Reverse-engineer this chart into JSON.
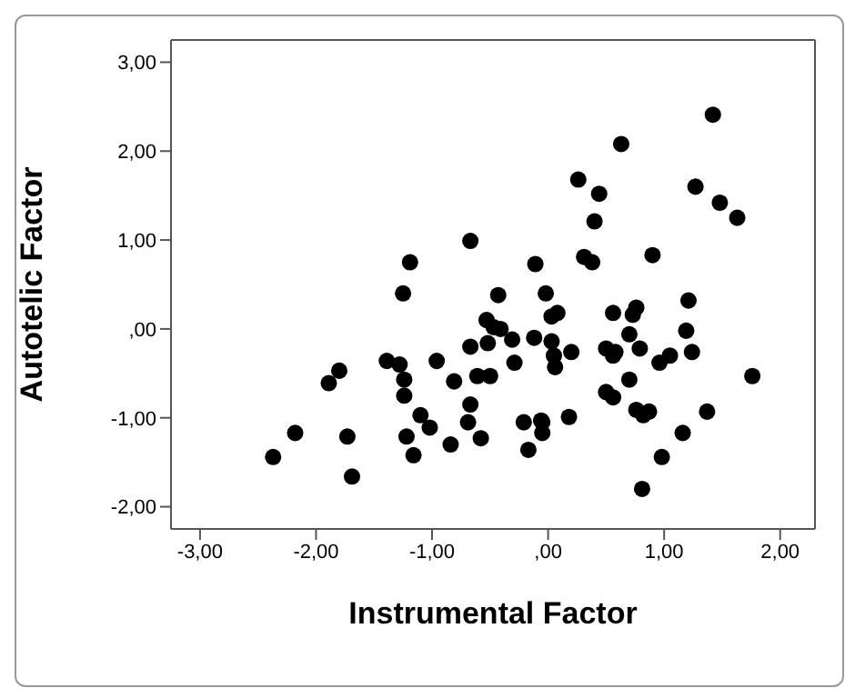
{
  "chart_data": {
    "type": "scatter",
    "xlabel": "Instrumental Factor",
    "ylabel": "Autotelic Factor",
    "xlim": [
      -3.25,
      2.3
    ],
    "ylim": [
      -2.25,
      3.25
    ],
    "xticks": [
      {
        "value": -3,
        "label": "-3,00"
      },
      {
        "value": -2,
        "label": "-2,00"
      },
      {
        "value": -1,
        "label": "-1,00"
      },
      {
        "value": 0,
        "label": ",00"
      },
      {
        "value": 1,
        "label": "1,00"
      },
      {
        "value": 2,
        "label": "2,00"
      }
    ],
    "yticks": [
      {
        "value": -2,
        "label": "-2,00"
      },
      {
        "value": -1,
        "label": "-1,00"
      },
      {
        "value": 0,
        "label": ",00"
      },
      {
        "value": 1,
        "label": "1,00"
      },
      {
        "value": 2,
        "label": "2,00"
      },
      {
        "value": 3,
        "label": "3,00"
      }
    ],
    "grid": false,
    "legend": false,
    "marker": "circle",
    "series": [
      {
        "color": "#000000",
        "x": [
          -1.25,
          -0.43,
          -0.53,
          -0.47,
          -0.41,
          -0.67,
          -0.52,
          -1.39,
          -1.28,
          -0.96,
          -1.8,
          -1.89,
          -1.24,
          -0.81,
          -0.61,
          -0.5,
          -1.24,
          -0.67,
          -1.1,
          -1.02,
          -0.69,
          -2.18,
          -1.73,
          -1.22,
          -0.58,
          -0.84,
          -2.37,
          -1.16,
          -1.69,
          -0.67,
          -1.19,
          1.42,
          0.63,
          0.26,
          1.27,
          0.44,
          1.48,
          1.63,
          0.4,
          -0.11,
          0.31,
          0.38,
          0.9,
          -0.02,
          0.08,
          0.03,
          -0.31,
          -0.12,
          0.03,
          -0.29,
          0.05,
          0.2,
          0.06,
          -0.21,
          -0.06,
          -0.05,
          -0.05,
          -0.17,
          0.18,
          0.56,
          0.76,
          0.73,
          1.21,
          0.7,
          1.19,
          0.5,
          0.58,
          0.56,
          0.79,
          1.24,
          0.96,
          1.05,
          0.7,
          0.5,
          0.56,
          0.76,
          0.82,
          0.87,
          1.37,
          1.76,
          1.16,
          0.98,
          0.81
        ],
        "values": [
          0.4,
          0.38,
          0.1,
          0.02,
          0.0,
          -0.2,
          -0.16,
          -0.36,
          -0.4,
          -0.36,
          -0.47,
          -0.61,
          -0.57,
          -0.59,
          -0.53,
          -0.53,
          -0.75,
          -0.85,
          -0.97,
          -1.11,
          -1.05,
          -1.17,
          -1.21,
          -1.21,
          -1.23,
          -1.3,
          -1.44,
          -1.42,
          -1.66,
          0.99,
          0.75,
          2.41,
          2.08,
          1.68,
          1.6,
          1.52,
          1.42,
          1.25,
          1.21,
          0.73,
          0.81,
          0.75,
          0.83,
          0.4,
          0.18,
          0.14,
          -0.12,
          -0.1,
          -0.14,
          -0.38,
          -0.3,
          -0.26,
          -0.43,
          -1.05,
          -1.03,
          -1.05,
          -1.17,
          -1.36,
          -0.99,
          0.18,
          0.24,
          0.16,
          0.32,
          -0.06,
          -0.02,
          -0.22,
          -0.26,
          -0.3,
          -0.22,
          -0.26,
          -0.38,
          -0.3,
          -0.57,
          -0.71,
          -0.77,
          -0.91,
          -0.97,
          -0.93,
          -0.93,
          -0.53,
          -1.17,
          -1.44,
          -1.8
        ]
      }
    ]
  }
}
